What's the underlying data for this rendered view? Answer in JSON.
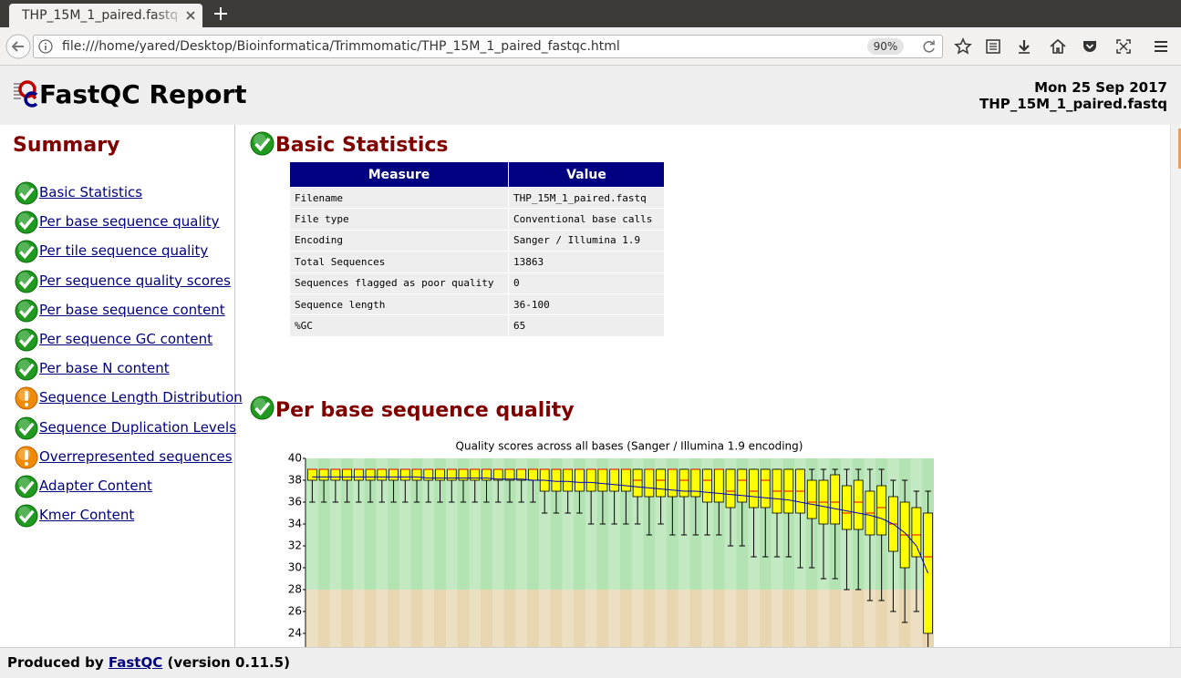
{
  "browser": {
    "tab_title": "THP_15M_1_paired.fastq",
    "url": "file:///home/yared/Desktop/Bioinformatica/Trimmomatic/THP_15M_1_paired_fastqc.html",
    "zoom": "90%"
  },
  "header": {
    "title": "FastQC Report",
    "date": "Mon 25 Sep 2017",
    "filename": "THP_15M_1_paired.fastq"
  },
  "summary": {
    "title": "Summary",
    "modules": [
      {
        "label": "Basic Statistics",
        "status": "pass"
      },
      {
        "label": "Per base sequence quality",
        "status": "pass"
      },
      {
        "label": "Per tile sequence quality",
        "status": "pass"
      },
      {
        "label": "Per sequence quality scores",
        "status": "pass"
      },
      {
        "label": "Per base sequence content",
        "status": "pass"
      },
      {
        "label": "Per sequence GC content",
        "status": "pass"
      },
      {
        "label": "Per base N content",
        "status": "pass"
      },
      {
        "label": "Sequence Length Distribution",
        "status": "warn"
      },
      {
        "label": "Sequence Duplication Levels",
        "status": "pass"
      },
      {
        "label": "Overrepresented sequences",
        "status": "warn"
      },
      {
        "label": "Adapter Content",
        "status": "pass"
      },
      {
        "label": "Kmer Content",
        "status": "pass"
      }
    ]
  },
  "sections": [
    {
      "title": "Basic Statistics",
      "status": "pass",
      "table": {
        "columns": [
          "Measure",
          "Value"
        ],
        "rows": [
          [
            "Filename",
            "THP_15M_1_paired.fastq"
          ],
          [
            "File type",
            "Conventional base calls"
          ],
          [
            "Encoding",
            "Sanger / Illumina 1.9"
          ],
          [
            "Total Sequences",
            "13863"
          ],
          [
            "Sequences flagged as poor quality",
            "0"
          ],
          [
            "Sequence length",
            "36-100"
          ],
          [
            "%GC",
            "65"
          ]
        ]
      }
    },
    {
      "title": "Per base sequence quality",
      "status": "pass",
      "chart_data": {
        "type": "box",
        "title": "Quality scores across all bases (Sanger / Illumina 1.9 encoding)",
        "ylim": [
          22,
          40
        ],
        "yticks": [
          40,
          38,
          36,
          34,
          32,
          30,
          28,
          26,
          24
        ],
        "zones": [
          {
            "from": 28,
            "to": 40,
            "color": "#b3e3b3"
          },
          {
            "from": 22,
            "to": 28,
            "color": "#e8d6b0"
          }
        ],
        "box_color": "#ffff00",
        "median_color": "#e00000",
        "mean_color": "#0000c0",
        "boxes": [
          [
            36,
            38,
            39,
            39,
            39
          ],
          [
            36,
            38,
            39,
            39,
            39
          ],
          [
            36,
            38,
            39,
            39,
            39
          ],
          [
            36,
            38,
            39,
            39,
            39
          ],
          [
            36,
            38,
            39,
            39,
            39
          ],
          [
            36,
            38,
            39,
            39,
            39
          ],
          [
            36,
            38,
            39,
            39,
            39
          ],
          [
            36,
            38,
            39,
            39,
            39
          ],
          [
            36,
            38,
            39,
            39,
            39
          ],
          [
            36,
            38,
            39,
            39,
            39
          ],
          [
            36,
            38,
            39,
            39,
            39
          ],
          [
            36,
            38,
            39,
            39,
            39
          ],
          [
            36,
            38,
            39,
            39,
            39
          ],
          [
            36,
            38,
            39,
            39,
            39
          ],
          [
            36,
            38,
            39,
            39,
            39
          ],
          [
            36,
            38,
            39,
            39,
            39
          ],
          [
            36,
            38,
            39,
            39,
            39
          ],
          [
            36,
            38,
            39,
            39,
            39
          ],
          [
            36,
            38,
            39,
            39,
            39
          ],
          [
            36,
            38,
            39,
            39,
            39
          ],
          [
            35,
            37,
            39,
            39,
            39
          ],
          [
            35,
            37,
            39,
            39,
            39
          ],
          [
            35,
            37,
            39,
            39,
            39
          ],
          [
            35,
            37,
            39,
            39,
            39
          ],
          [
            34,
            37,
            39,
            39,
            39
          ],
          [
            34,
            37,
            39,
            39,
            39
          ],
          [
            34,
            37,
            39,
            39,
            39
          ],
          [
            34,
            37,
            39,
            39,
            39
          ],
          [
            34,
            36.5,
            38,
            39,
            39
          ],
          [
            33,
            36.5,
            39,
            39,
            39
          ],
          [
            34,
            36.5,
            38,
            39,
            39
          ],
          [
            33,
            36.5,
            39,
            39,
            39
          ],
          [
            33,
            36.5,
            38,
            39,
            39
          ],
          [
            33,
            36.5,
            39,
            39,
            39
          ],
          [
            33,
            36,
            38,
            39,
            39
          ],
          [
            33,
            36,
            39,
            39,
            39
          ],
          [
            32,
            35.5,
            37,
            39,
            39
          ],
          [
            32,
            36,
            38,
            39,
            39
          ],
          [
            31,
            35.5,
            37,
            39,
            39
          ],
          [
            31,
            35.5,
            38,
            39,
            39
          ],
          [
            31,
            35,
            37,
            39,
            39
          ],
          [
            31,
            35,
            37,
            39,
            39
          ],
          [
            30,
            35,
            37,
            39,
            39
          ],
          [
            30,
            34.5,
            36,
            38,
            39
          ],
          [
            29,
            34,
            36,
            38,
            39
          ],
          [
            29,
            34,
            36,
            38.5,
            39
          ],
          [
            28,
            33.5,
            35,
            37.5,
            39
          ],
          [
            28,
            33.5,
            36,
            38,
            39
          ],
          [
            27,
            33,
            35,
            37,
            39
          ],
          [
            27,
            33,
            35.5,
            37.5,
            39
          ],
          [
            26,
            31.5,
            34,
            36.5,
            38
          ],
          [
            25,
            30,
            33,
            36,
            38
          ],
          [
            26,
            31,
            33,
            35.5,
            37
          ],
          [
            22,
            24,
            31,
            35,
            37
          ]
        ],
        "mean": [
          38.3,
          38.3,
          38.3,
          38.3,
          38.3,
          38.3,
          38.3,
          38.3,
          38.3,
          38.3,
          38.2,
          38.2,
          38.2,
          38.2,
          38.2,
          38.2,
          38.1,
          38.1,
          38.1,
          38.0,
          38.0,
          37.9,
          37.9,
          37.8,
          37.8,
          37.7,
          37.6,
          37.5,
          37.4,
          37.3,
          37.2,
          37.1,
          37.0,
          37.0,
          36.9,
          36.8,
          36.7,
          36.6,
          36.5,
          36.4,
          36.3,
          36.2,
          36.0,
          35.8,
          35.6,
          35.4,
          35.2,
          35.0,
          34.8,
          34.5,
          34.0,
          33.2,
          32.0,
          29.5
        ]
      }
    }
  ],
  "footer": {
    "prefix": "Produced by",
    "link": "FastQC",
    "suffix": "(version 0.11.5)"
  }
}
